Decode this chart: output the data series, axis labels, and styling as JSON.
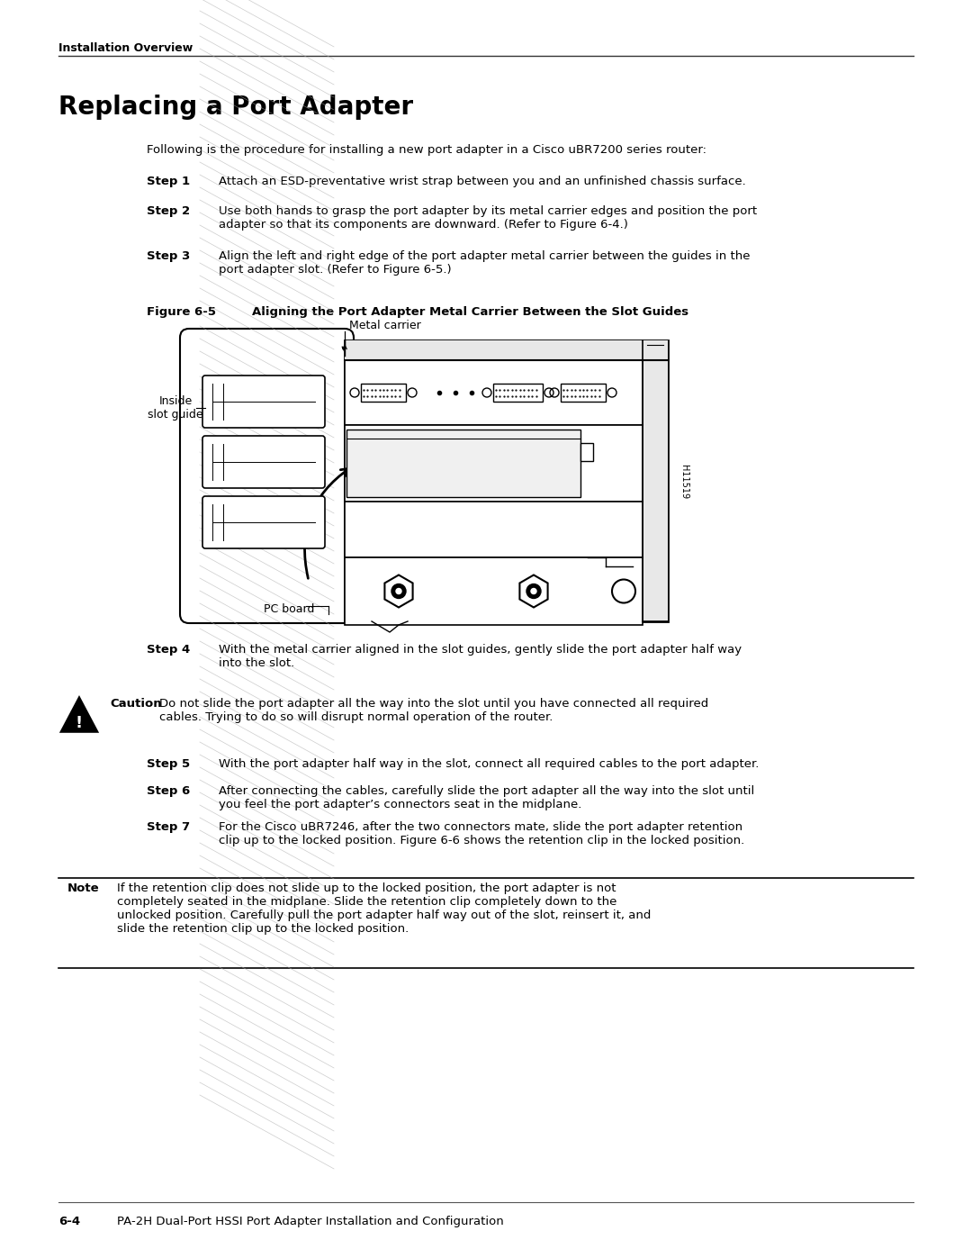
{
  "bg_color": "#ffffff",
  "header_text": "Installation Overview",
  "title": "Replacing a Port Adapter",
  "intro": "Following is the procedure for installing a new port adapter in a Cisco uBR7200 series router:",
  "steps": [
    {
      "label": "Step 1",
      "text": "Attach an ESD-preventative wrist strap between you and an unfinished chassis surface."
    },
    {
      "label": "Step 2",
      "text": "Use both hands to grasp the port adapter by its metal carrier edges and position the port\nadapter so that its components are downward. (Refer to Figure 6-4.)"
    },
    {
      "label": "Step 3",
      "text": "Align the left and right edge of the port adapter metal carrier between the guides in the\nport adapter slot. (Refer to Figure 6-5.)"
    }
  ],
  "figure_label": "Figure 6-5",
  "figure_title": "Aligning the Port Adapter Metal Carrier Between the Slot Guides",
  "fig_labels": {
    "metal_carrier": "Metal carrier",
    "inside_slot_guide": "Inside\nslot guide",
    "pc_board": "PC board"
  },
  "step4_label": "Step 4",
  "step4_text": "With the metal carrier aligned in the slot guides, gently slide the port adapter half way\ninto the slot.",
  "caution_title": "Caution",
  "caution_text": "Do not slide the port adapter all the way into the slot until you have connected all required\ncables. Trying to do so will disrupt normal operation of the router.",
  "step5_label": "Step 5",
  "step5_text": "With the port adapter half way in the slot, connect all required cables to the port adapter.",
  "step6_label": "Step 6",
  "step6_text": "After connecting the cables, carefully slide the port adapter all the way into the slot until\nyou feel the port adapter’s connectors seat in the midplane.",
  "step7_label": "Step 7",
  "step7_text": "For the Cisco uBR7246, after the two connectors mate, slide the port adapter retention\nclip up to the locked position. Figure 6-6 shows the retention clip in the locked position.",
  "note_title": "Note",
  "note_text": "If the retention clip does not slide up to the locked position, the port adapter is not\ncompletely seated in the midplane. Slide the retention clip completely down to the\nunlocked position. Carefully pull the port adapter half way out of the slot, reinsert it, and\nslide the retention clip up to the locked position.",
  "footer_left": "6-4",
  "footer_right": "PA-2H Dual-Port HSSI Port Adapter Installation and Configuration",
  "text_color": "#000000"
}
